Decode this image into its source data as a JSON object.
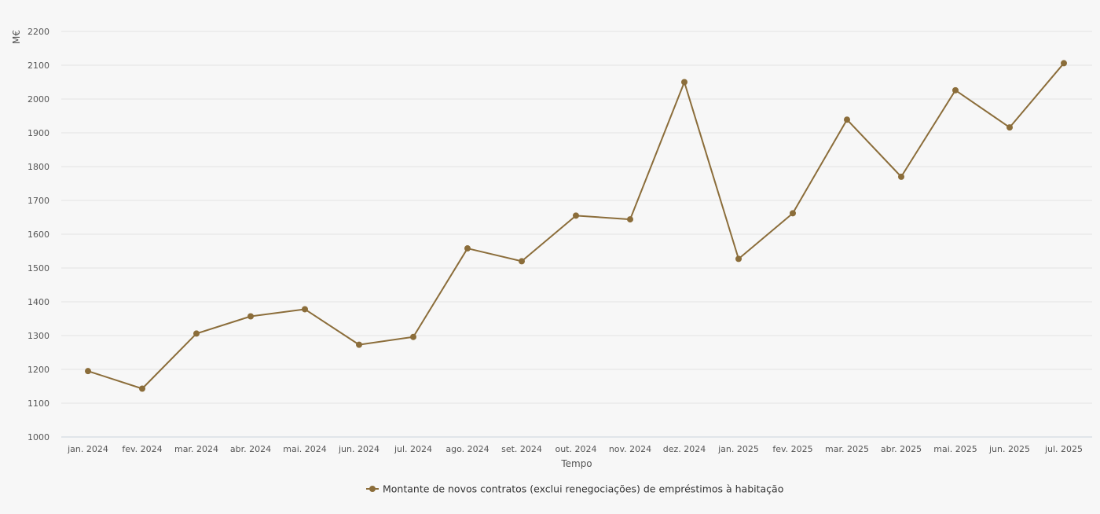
{
  "chart_data": {
    "type": "line",
    "xlabel": "Tempo",
    "ylabel": "M€",
    "ylim": [
      1000,
      2200
    ],
    "yticks": [
      1000,
      1100,
      1200,
      1300,
      1400,
      1500,
      1600,
      1700,
      1800,
      1900,
      2000,
      2100,
      2200
    ],
    "grid": true,
    "legend_position": "bottom-center",
    "categories": [
      "jan. 2024",
      "fev. 2024",
      "mar. 2024",
      "abr. 2024",
      "mai. 2024",
      "jun. 2024",
      "jul. 2024",
      "ago. 2024",
      "set. 2024",
      "out. 2024",
      "nov. 2024",
      "dez. 2024",
      "jan. 2025",
      "fev. 2025",
      "mar. 2025",
      "abr. 2025",
      "mai. 2025",
      "jun. 2025",
      "jul. 2025"
    ],
    "series": [
      {
        "name": "Montante de novos contratos (exclui renegociações) de empréstimos à habitação",
        "color": "#8b6d3a",
        "values": [
          1195,
          1143,
          1306,
          1357,
          1378,
          1273,
          1296,
          1558,
          1520,
          1655,
          1644,
          2050,
          1527,
          1662,
          1939,
          1770,
          2026,
          1916,
          2106
        ]
      }
    ]
  }
}
